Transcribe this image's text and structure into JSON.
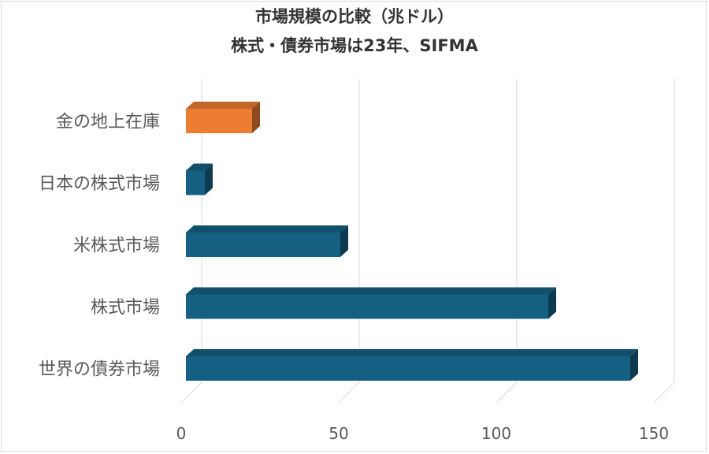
{
  "chart_data": {
    "type": "bar",
    "orientation": "horizontal",
    "title": "市場規模の比較（兆ドル）",
    "subtitle": "株式・債券市場は23年、SIFMA",
    "categories": [
      "金の地上在庫",
      "日本の株式市場",
      "米株式市場",
      "株式市場",
      "世界の債券市場"
    ],
    "values": [
      21,
      6,
      49,
      115,
      141
    ],
    "colors": [
      "#ED7D31",
      "#156082",
      "#156082",
      "#156082",
      "#156082"
    ],
    "xlim": [
      0,
      150
    ],
    "xticks": [
      0,
      50,
      100,
      150
    ],
    "grid": true,
    "legend": "none",
    "style": "3d"
  }
}
